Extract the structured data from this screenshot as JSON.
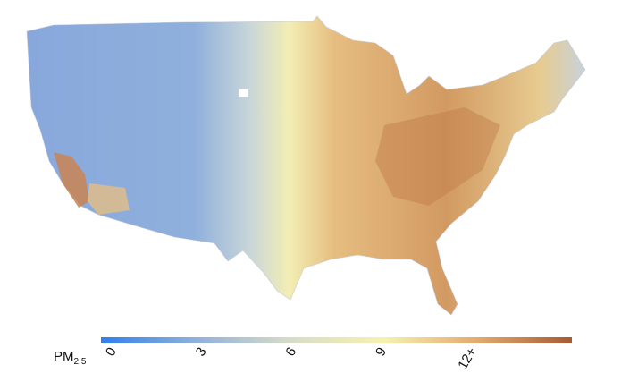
{
  "legend": {
    "title": "PM",
    "subscript": "2.5",
    "range": [
      -0.4,
      15.3
    ],
    "ticks": [
      0,
      3,
      6,
      9,
      {
        "value": 12,
        "label": "12+"
      }
    ],
    "colors": [
      "#2f80ec",
      "#8fb0dc",
      "#d6dcc8",
      "#f7f1b0",
      "#e3aa6c",
      "#a85a32"
    ]
  }
}
